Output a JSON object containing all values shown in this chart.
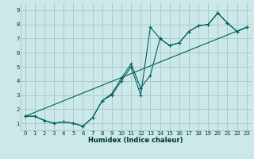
{
  "xlabel": "Humidex (Indice chaleur)",
  "bg_color": "#cce8e8",
  "grid_color": "#aacccc",
  "line_color": "#006060",
  "xlim": [
    -0.5,
    23.5
  ],
  "ylim": [
    0.5,
    9.5
  ],
  "xticks": [
    0,
    1,
    2,
    3,
    4,
    5,
    6,
    7,
    8,
    9,
    10,
    11,
    12,
    13,
    14,
    15,
    16,
    17,
    18,
    19,
    20,
    21,
    22,
    23
  ],
  "yticks": [
    1,
    2,
    3,
    4,
    5,
    6,
    7,
    8,
    9
  ],
  "line1_x": [
    0,
    1,
    2,
    3,
    4,
    5,
    6,
    7,
    8,
    9,
    10,
    11,
    12,
    13,
    14,
    15,
    16,
    17,
    18,
    19,
    20,
    21,
    22,
    23
  ],
  "line1_y": [
    1.5,
    1.5,
    1.2,
    1.0,
    1.1,
    1.0,
    0.8,
    1.4,
    2.6,
    3.0,
    4.0,
    5.0,
    3.0,
    7.8,
    7.0,
    6.5,
    6.7,
    7.5,
    7.9,
    8.0,
    8.8,
    8.1,
    7.5,
    7.8
  ],
  "line2_x": [
    0,
    1,
    2,
    3,
    4,
    5,
    6,
    7,
    8,
    9,
    10,
    11,
    12,
    13,
    14,
    15,
    16,
    17,
    18,
    19,
    20,
    21,
    22,
    23
  ],
  "line2_y": [
    1.5,
    1.5,
    1.2,
    1.0,
    1.1,
    1.0,
    0.8,
    1.4,
    2.6,
    3.1,
    4.2,
    5.2,
    3.5,
    4.4,
    7.0,
    6.5,
    6.7,
    7.5,
    7.9,
    8.0,
    8.8,
    8.1,
    7.5,
    7.8
  ],
  "line3_x": [
    0,
    23
  ],
  "line3_y": [
    1.5,
    7.8
  ]
}
